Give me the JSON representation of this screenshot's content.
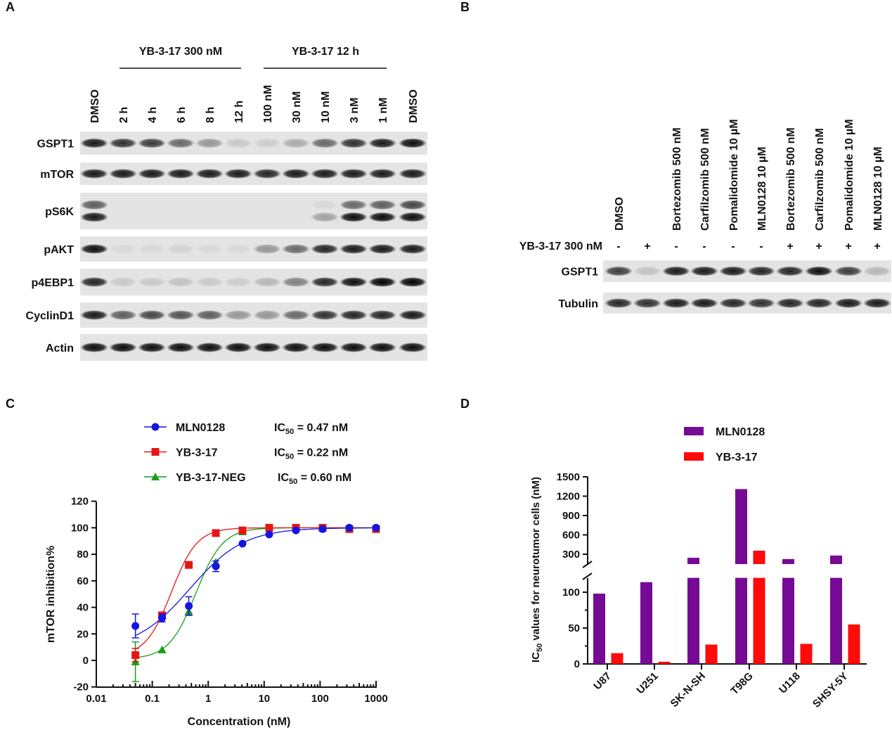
{
  "panels": {
    "a": "A",
    "b": "B",
    "c": "C",
    "d": "D"
  },
  "panel_a": {
    "group1": "YB-3-17 300 nM",
    "group2": "YB-3-17 12 h",
    "lanes": [
      "DMSO",
      "2 h",
      "4 h",
      "6 h",
      "8 h",
      "12 h",
      "100 nM",
      "30 nM",
      "10 nM",
      "3 nM",
      "1 nM",
      "DMSO"
    ],
    "rows": [
      {
        "label": "GSPT1",
        "bands": [
          [
            0.9,
            0.8,
            0.75,
            0.55,
            0.35,
            0.12,
            0.1,
            0.25,
            0.55,
            0.8,
            0.9,
            0.95
          ]
        ]
      },
      {
        "label": "mTOR",
        "bands": [
          [
            0.9,
            0.9,
            0.9,
            0.9,
            0.9,
            0.9,
            0.85,
            0.9,
            0.9,
            0.9,
            0.9,
            0.9
          ]
        ]
      },
      {
        "label": "pS6K",
        "bands": [
          [
            0.6,
            0,
            0,
            0,
            0,
            0,
            0,
            0,
            0.05,
            0.55,
            0.6,
            0.7
          ],
          [
            0.9,
            0,
            0,
            0,
            0,
            0,
            0,
            0,
            0.3,
            0.95,
            0.95,
            0.95
          ]
        ]
      },
      {
        "label": "pAKT",
        "bands": [
          [
            0.95,
            0.05,
            0.05,
            0.08,
            0.05,
            0.05,
            0.35,
            0.55,
            0.85,
            0.9,
            0.9,
            0.9
          ]
        ]
      },
      {
        "label": "p4EBP1",
        "bands": [
          [
            0.85,
            0.12,
            0.12,
            0.15,
            0.12,
            0.1,
            0.2,
            0.45,
            0.85,
            0.95,
            1,
            1
          ]
        ]
      },
      {
        "label": "CyclinD1",
        "bands": [
          [
            0.9,
            0.6,
            0.7,
            0.65,
            0.6,
            0.35,
            0.35,
            0.55,
            0.8,
            0.85,
            0.85,
            0.9
          ]
        ]
      },
      {
        "label": "Actin",
        "bands": [
          [
            0.95,
            0.95,
            0.95,
            0.95,
            0.95,
            0.95,
            0.95,
            0.95,
            0.95,
            0.95,
            0.95,
            0.95
          ]
        ]
      }
    ]
  },
  "panel_b": {
    "lanes": [
      "DMSO",
      "",
      "Bortezomib 500 nM",
      "Carfilzomib  500 nM",
      "Pomalidomide  10 µM",
      "MLN0128 10 µM",
      "Bortezomib 500 nM",
      "Carfilzomib  500 nM",
      "Pomalidomide  10 µM",
      "MLN0128 10 µM"
    ],
    "treatment_label": "YB-3-17 300 nM",
    "signs": [
      "-",
      "+",
      "-",
      "-",
      "-",
      "-",
      "+",
      "+",
      "+",
      "+"
    ],
    "rows": [
      {
        "label": "GSPT1",
        "bands": [
          [
            0.75,
            0.15,
            0.9,
            0.9,
            0.9,
            0.85,
            0.85,
            0.95,
            0.75,
            0.2
          ]
        ]
      },
      {
        "label": "Tubulin",
        "bands": [
          [
            0.85,
            0.8,
            0.9,
            0.9,
            0.85,
            0.8,
            0.85,
            0.85,
            0.9,
            0.9
          ]
        ]
      }
    ]
  },
  "chart_data": [
    {
      "type": "line",
      "xscale": "log",
      "xlim": [
        0.01,
        1000
      ],
      "ylim": [
        -20,
        120
      ],
      "xlabel": "Concentration (nM)",
      "ylabel": "mTOR inhibition%",
      "xticks": [
        "0.01",
        "0.1",
        "1",
        "10",
        "100",
        "1000"
      ],
      "yticks": [
        "-20",
        "0",
        "20",
        "40",
        "60",
        "80",
        "100",
        "120"
      ],
      "x": [
        0.05,
        0.15,
        0.45,
        1.37,
        4.1,
        12.3,
        37,
        111,
        333,
        1000
      ],
      "series": [
        {
          "name": "MLN0128",
          "ic50_label": "IC",
          "ic50_sub": "50",
          "ic50_value": " = 0.47 nM",
          "color": "#1515e0",
          "marker": "circle",
          "ic50": 0.47,
          "hill": 0.9,
          "bottom": 8,
          "values": [
            26,
            32,
            41,
            71,
            88,
            95,
            98,
            99,
            100,
            100
          ],
          "errors": [
            9,
            3,
            7,
            4,
            0,
            0,
            0,
            0,
            0,
            0
          ]
        },
        {
          "name": "YB-3-17",
          "ic50_label": "IC",
          "ic50_sub": "50",
          "ic50_value": " = 0.22 nM",
          "color": "#e81515",
          "marker": "square",
          "ic50": 0.22,
          "hill": 1.9,
          "bottom": 3,
          "values": [
            4,
            34,
            72,
            96,
            98,
            100,
            100,
            100,
            99,
            99
          ],
          "errors": [
            5,
            0,
            0,
            0,
            0,
            0,
            0,
            0,
            0,
            0
          ]
        },
        {
          "name": "YB-3-17-NEG",
          "ic50_label": "IC",
          "ic50_sub": "50",
          "ic50_value": " = 0.60 nM",
          "color": "#1a9e1a",
          "marker": "triangle",
          "ic50": 0.6,
          "hill": 1.8,
          "bottom": 1,
          "values": [
            -1,
            8,
            37,
            74,
            97,
            100,
            100,
            100,
            100,
            100
          ],
          "errors": [
            15,
            0,
            3,
            0,
            0,
            0,
            0,
            0,
            0,
            0
          ]
        }
      ]
    },
    {
      "type": "bar",
      "ylabel_pre": "IC",
      "ylabel_sub": "50",
      "ylabel_post": " values for neurotumor cells (nM)",
      "categories": [
        "U87",
        "U251",
        "SK-N-SH",
        "T98G",
        "U118",
        "SHSY-5Y"
      ],
      "axis_break": [
        120,
        150
      ],
      "ylim": [
        0,
        1500
      ],
      "yticks_lower": [
        "0",
        "50",
        "100"
      ],
      "yticks_upper": [
        "300",
        "600",
        "900",
        "1200",
        "1500"
      ],
      "series": [
        {
          "name": "MLN0128",
          "color": "#760a94",
          "values": [
            98,
            114,
            245,
            1310,
            225,
            280
          ]
        },
        {
          "name": "YB-3-17",
          "color": "#ff0a0a",
          "values": [
            15,
            3,
            27,
            355,
            28,
            55
          ]
        }
      ]
    }
  ]
}
